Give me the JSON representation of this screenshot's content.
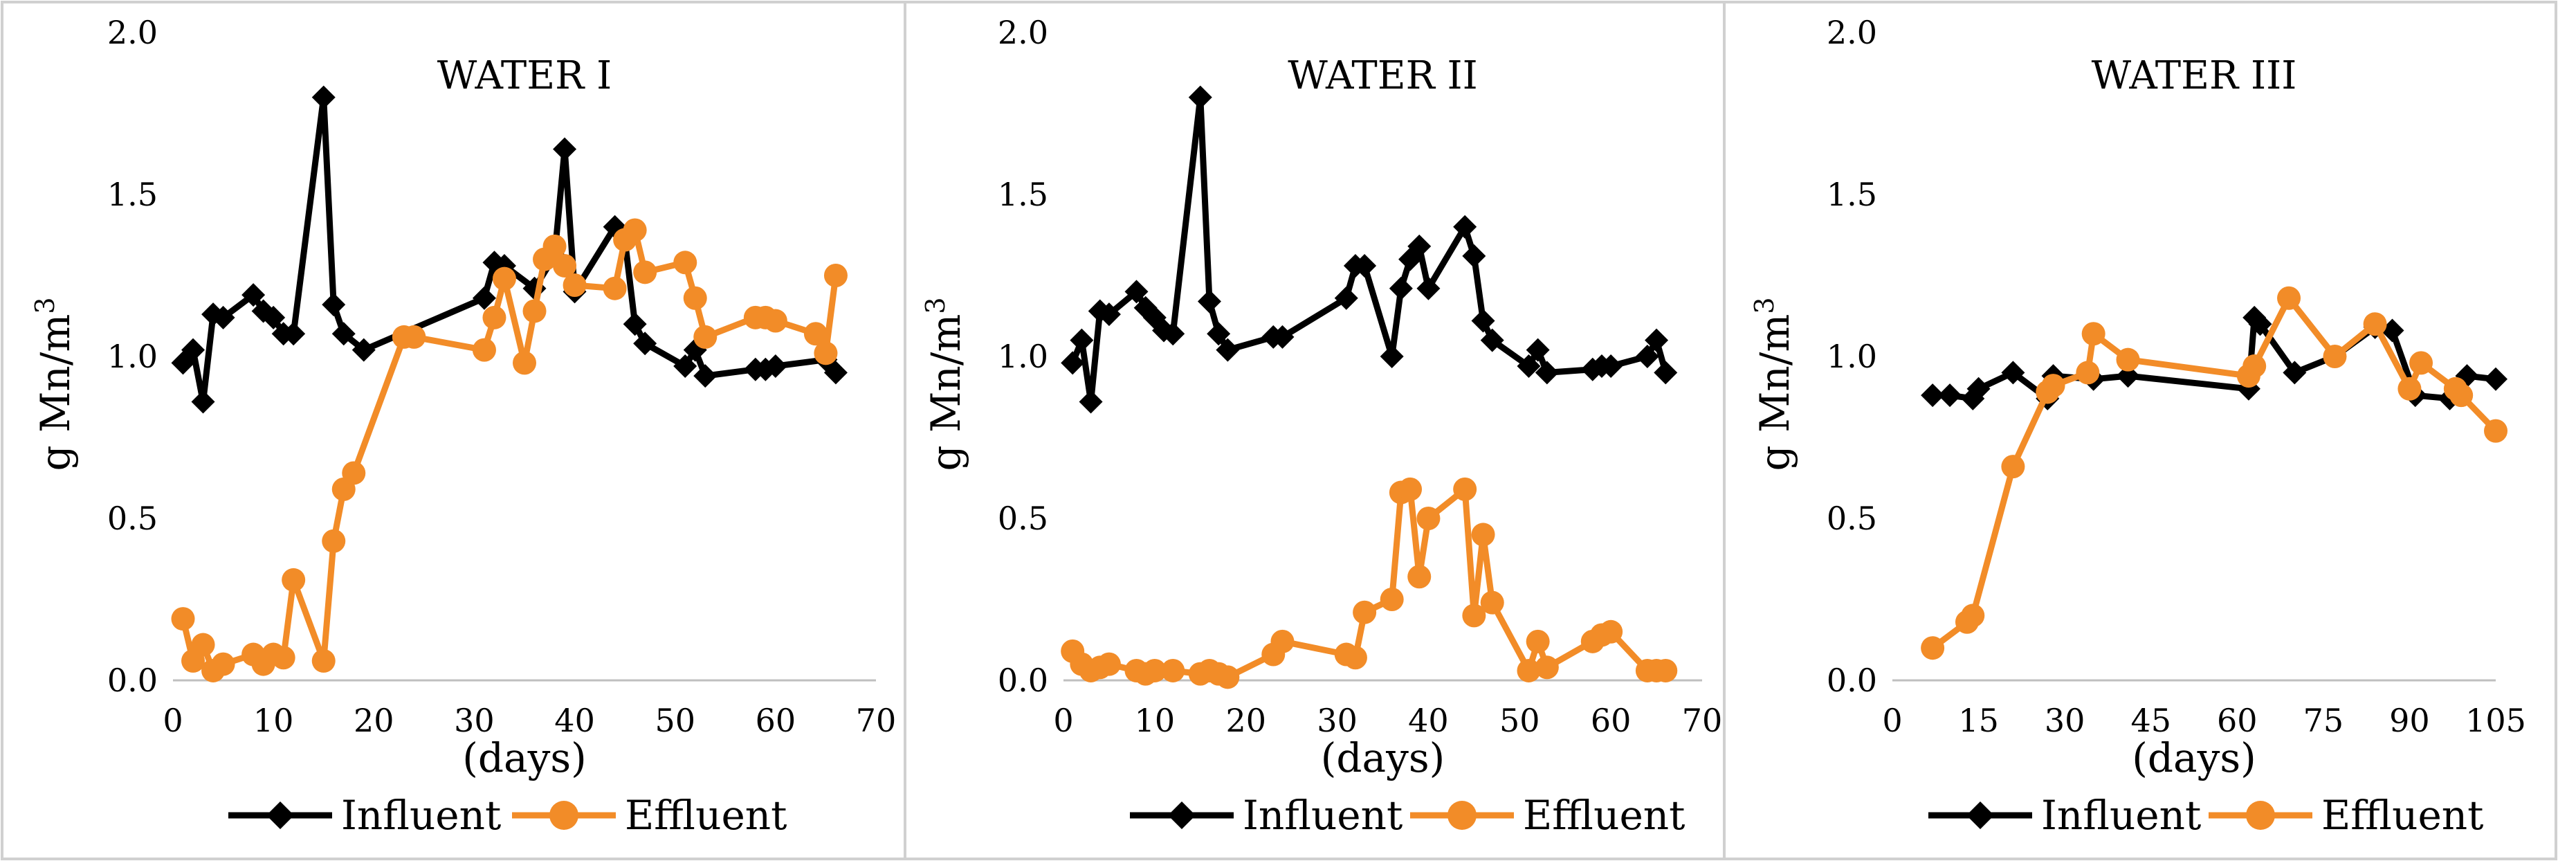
{
  "chart_data": [
    {
      "type": "line",
      "title": "WATER I",
      "xlabel": "(days)",
      "ylabel": "g Mn/m3",
      "ylabel_main": "g Mn/m",
      "ylabel_sup": "3",
      "xlim": [
        0,
        70
      ],
      "ylim": [
        0,
        2.0
      ],
      "xticks": [
        "0",
        "10",
        "20",
        "30",
        "40",
        "50",
        "60",
        "70"
      ],
      "yticks": [
        "0.0",
        "0.5",
        "1.0",
        "1.5",
        "2.0"
      ],
      "legend_position": "bottom",
      "grid": false,
      "series": [
        {
          "name": "Influent",
          "color": "#000000",
          "marker": "diamond",
          "x": [
            1,
            2,
            3,
            4,
            5,
            8,
            9,
            10,
            11,
            12,
            15,
            16,
            17,
            19,
            31,
            32,
            33,
            36,
            38,
            39,
            40,
            44,
            45,
            46,
            47,
            51,
            52,
            53,
            58,
            59,
            60,
            65,
            66
          ],
          "y": [
            0.98,
            1.02,
            0.86,
            1.13,
            1.12,
            1.19,
            1.14,
            1.12,
            1.07,
            1.07,
            1.8,
            1.16,
            1.07,
            1.02,
            1.18,
            1.29,
            1.28,
            1.21,
            1.31,
            1.64,
            1.2,
            1.4,
            1.36,
            1.1,
            1.04,
            0.97,
            1.02,
            0.94,
            0.96,
            0.96,
            0.97,
            0.99,
            0.95
          ]
        },
        {
          "name": "Effluent",
          "color": "#F28C28",
          "marker": "circle",
          "x": [
            1,
            2,
            3,
            4,
            5,
            8,
            9,
            10,
            11,
            12,
            15,
            16,
            17,
            18,
            23,
            24,
            31,
            32,
            33,
            35,
            36,
            37,
            38,
            39,
            40,
            44,
            45,
            46,
            47,
            51,
            52,
            53,
            58,
            59,
            60,
            64,
            65,
            66
          ],
          "y": [
            0.19,
            0.06,
            0.11,
            0.03,
            0.05,
            0.08,
            0.05,
            0.08,
            0.07,
            0.31,
            0.06,
            0.43,
            0.59,
            0.64,
            1.06,
            1.06,
            1.02,
            1.12,
            1.24,
            0.98,
            1.14,
            1.3,
            1.34,
            1.28,
            1.22,
            1.21,
            1.36,
            1.39,
            1.26,
            1.29,
            1.18,
            1.06,
            1.12,
            1.12,
            1.11,
            1.07,
            1.01,
            1.25
          ]
        }
      ]
    },
    {
      "type": "line",
      "title": "WATER II",
      "xlabel": "(days)",
      "ylabel": "g Mn/m3",
      "ylabel_main": "g Mn/m",
      "ylabel_sup": "3",
      "xlim": [
        0,
        70
      ],
      "ylim": [
        0,
        2.0
      ],
      "xticks": [
        "0",
        "10",
        "20",
        "30",
        "40",
        "50",
        "60",
        "70"
      ],
      "yticks": [
        "0.0",
        "0.5",
        "1.0",
        "1.5",
        "2.0"
      ],
      "legend_position": "bottom",
      "grid": false,
      "series": [
        {
          "name": "Influent",
          "color": "#000000",
          "marker": "diamond",
          "x": [
            1,
            2,
            3,
            4,
            5,
            8,
            9,
            10,
            11,
            12,
            15,
            16,
            17,
            18,
            23,
            24,
            31,
            32,
            33,
            36,
            37,
            38,
            39,
            40,
            44,
            45,
            46,
            47,
            51,
            52,
            53,
            58,
            59,
            60,
            64,
            65,
            66
          ],
          "y": [
            0.98,
            1.05,
            0.86,
            1.14,
            1.13,
            1.2,
            1.15,
            1.12,
            1.08,
            1.07,
            1.8,
            1.17,
            1.07,
            1.02,
            1.06,
            1.06,
            1.18,
            1.28,
            1.28,
            1.0,
            1.21,
            1.3,
            1.34,
            1.21,
            1.4,
            1.31,
            1.11,
            1.05,
            0.97,
            1.02,
            0.95,
            0.96,
            0.97,
            0.97,
            1.0,
            1.05,
            0.95
          ]
        },
        {
          "name": "Effluent",
          "color": "#F28C28",
          "marker": "circle",
          "x": [
            1,
            2,
            3,
            4,
            5,
            8,
            9,
            10,
            12,
            15,
            16,
            17,
            18,
            23,
            24,
            31,
            32,
            33,
            36,
            37,
            38,
            39,
            40,
            44,
            45,
            46,
            47,
            51,
            52,
            53,
            58,
            59,
            60,
            64,
            65,
            66
          ],
          "y": [
            0.09,
            0.05,
            0.03,
            0.04,
            0.05,
            0.03,
            0.02,
            0.03,
            0.03,
            0.02,
            0.03,
            0.02,
            0.01,
            0.08,
            0.12,
            0.08,
            0.07,
            0.21,
            0.25,
            0.58,
            0.59,
            0.32,
            0.5,
            0.59,
            0.2,
            0.45,
            0.24,
            0.03,
            0.12,
            0.04,
            0.12,
            0.14,
            0.15,
            0.03,
            0.03,
            0.03
          ]
        }
      ]
    },
    {
      "type": "line",
      "title": "WATER III",
      "xlabel": "(days)",
      "ylabel": "g Mn/m3",
      "ylabel_main": "g Mn/m",
      "ylabel_sup": "3",
      "xlim": [
        0,
        105
      ],
      "ylim": [
        0,
        2.0
      ],
      "xticks": [
        "0",
        "15",
        "30",
        "45",
        "60",
        "75",
        "90",
        "105"
      ],
      "yticks": [
        "0.0",
        "0.5",
        "1.0",
        "1.5",
        "2.0"
      ],
      "legend_position": "bottom",
      "grid": false,
      "series": [
        {
          "name": "Influent",
          "color": "#000000",
          "marker": "diamond",
          "x": [
            7,
            10,
            14,
            15,
            21,
            27,
            28,
            35,
            41,
            62,
            63,
            64,
            70,
            77,
            84,
            87,
            91,
            97,
            100,
            105
          ],
          "y": [
            0.88,
            0.88,
            0.87,
            0.9,
            0.95,
            0.87,
            0.94,
            0.93,
            0.94,
            0.9,
            1.12,
            1.1,
            0.95,
            1.0,
            1.09,
            1.08,
            0.88,
            0.87,
            0.94,
            0.93
          ]
        },
        {
          "name": "Effluent",
          "color": "#F28C28",
          "marker": "circle",
          "x": [
            7,
            13,
            14,
            21,
            27,
            28,
            34,
            35,
            41,
            62,
            63,
            69,
            77,
            84,
            90,
            92,
            98,
            99,
            105
          ],
          "y": [
            0.1,
            0.18,
            0.2,
            0.66,
            0.89,
            0.91,
            0.95,
            1.07,
            0.99,
            0.94,
            0.97,
            1.18,
            1.0,
            1.1,
            0.9,
            0.98,
            0.9,
            0.88,
            0.77
          ]
        }
      ]
    }
  ]
}
